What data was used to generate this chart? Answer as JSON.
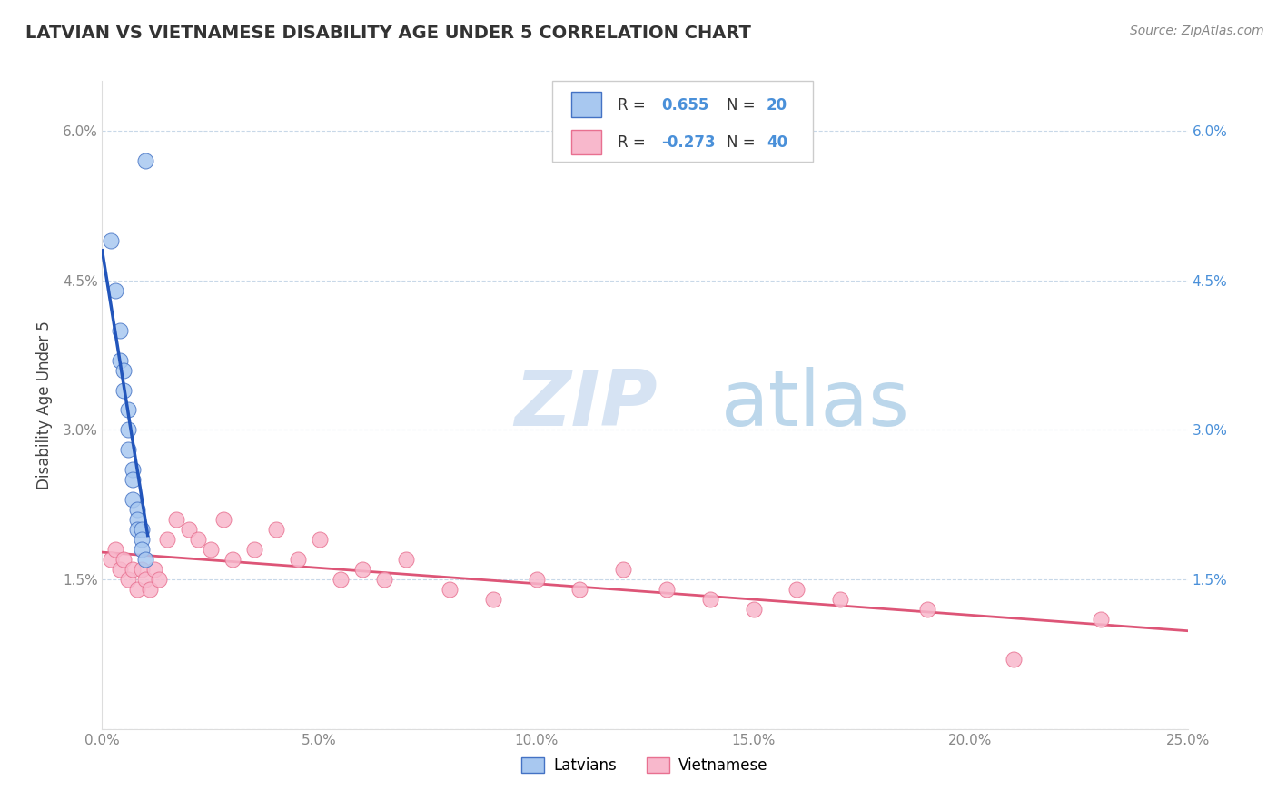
{
  "title": "LATVIAN VS VIETNAMESE DISABILITY AGE UNDER 5 CORRELATION CHART",
  "source": "Source: ZipAtlas.com",
  "ylabel": "Disability Age Under 5",
  "xlabel_latvians": "Latvians",
  "xlabel_vietnamese": "Vietnamese",
  "xlim": [
    0.0,
    0.25
  ],
  "ylim": [
    0.0,
    0.065
  ],
  "xticks": [
    0.0,
    0.05,
    0.1,
    0.15,
    0.2,
    0.25
  ],
  "xticklabels": [
    "0.0%",
    "5.0%",
    "10.0%",
    "15.0%",
    "20.0%",
    "25.0%"
  ],
  "yticks": [
    0.0,
    0.015,
    0.03,
    0.045,
    0.06
  ],
  "yticklabels_left": [
    "",
    "1.5%",
    "3.0%",
    "4.5%",
    "6.0%"
  ],
  "yticklabels_right": [
    "",
    "1.5%",
    "3.0%",
    "4.5%",
    "6.0%"
  ],
  "latvian_color": "#a8c8f0",
  "latvian_edge_color": "#4472c4",
  "latvian_line_color": "#2255bb",
  "vietnamese_color": "#f8b8cc",
  "vietnamese_edge_color": "#e87090",
  "vietnamese_line_color": "#dd5577",
  "latvian_x": [
    0.002,
    0.003,
    0.004,
    0.004,
    0.005,
    0.005,
    0.006,
    0.006,
    0.006,
    0.007,
    0.007,
    0.007,
    0.008,
    0.008,
    0.008,
    0.009,
    0.009,
    0.009,
    0.01,
    0.01
  ],
  "latvian_y": [
    0.049,
    0.044,
    0.04,
    0.037,
    0.036,
    0.034,
    0.032,
    0.03,
    0.028,
    0.026,
    0.025,
    0.023,
    0.022,
    0.021,
    0.02,
    0.02,
    0.019,
    0.018,
    0.017,
    0.057
  ],
  "vietnamese_x": [
    0.002,
    0.003,
    0.004,
    0.005,
    0.006,
    0.007,
    0.008,
    0.009,
    0.01,
    0.011,
    0.012,
    0.013,
    0.015,
    0.017,
    0.02,
    0.022,
    0.025,
    0.028,
    0.03,
    0.035,
    0.04,
    0.045,
    0.05,
    0.055,
    0.06,
    0.065,
    0.07,
    0.08,
    0.09,
    0.1,
    0.11,
    0.12,
    0.13,
    0.14,
    0.15,
    0.16,
    0.17,
    0.19,
    0.21,
    0.23
  ],
  "vietnamese_y": [
    0.017,
    0.018,
    0.016,
    0.017,
    0.015,
    0.016,
    0.014,
    0.016,
    0.015,
    0.014,
    0.016,
    0.015,
    0.019,
    0.021,
    0.02,
    0.019,
    0.018,
    0.021,
    0.017,
    0.018,
    0.02,
    0.017,
    0.019,
    0.015,
    0.016,
    0.015,
    0.017,
    0.014,
    0.013,
    0.015,
    0.014,
    0.016,
    0.014,
    0.013,
    0.012,
    0.014,
    0.013,
    0.012,
    0.007,
    0.011
  ],
  "watermark_zip": "ZIP",
  "watermark_atlas": "atlas",
  "background_color": "#ffffff",
  "grid_color": "#c8d8e8",
  "title_color": "#333333",
  "source_color": "#888888",
  "ylabel_color": "#444444",
  "tick_color_left": "#888888",
  "tick_color_right": "#4a90d9",
  "legend_text_black": "#333333",
  "legend_text_blue": "#4a90d9"
}
